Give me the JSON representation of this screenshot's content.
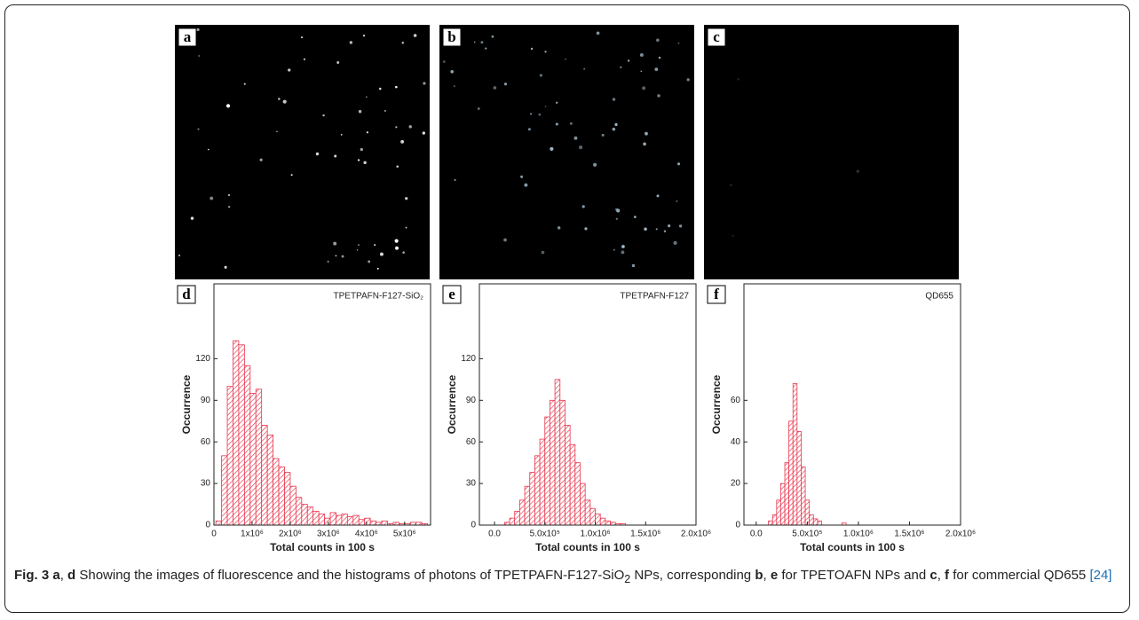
{
  "image_panels": [
    "a",
    "b",
    "c"
  ],
  "chart_data": [
    {
      "type": "histogram",
      "panel": "d",
      "annotation": "TPETPAFN-F127-SiO₂",
      "xlabel": "Total counts in 100 s",
      "ylabel": "Occurrence",
      "color": "#e8334a",
      "bins": [
        50000,
        200000,
        350000,
        500000,
        650000,
        800000,
        950000,
        1100000,
        1250000,
        1400000,
        1550000,
        1700000,
        1850000,
        2000000,
        2150000,
        2300000,
        2450000,
        2600000,
        2750000,
        2900000,
        3050000,
        3200000,
        3350000,
        3500000,
        3650000,
        3800000,
        3950000,
        4100000,
        4250000,
        4400000,
        4550000,
        4700000,
        4850000,
        5000000,
        5150000,
        5300000,
        5450000,
        5600000
      ],
      "values": [
        3,
        50,
        100,
        133,
        130,
        115,
        95,
        98,
        72,
        65,
        48,
        42,
        38,
        28,
        20,
        15,
        13,
        10,
        8,
        5,
        9,
        7,
        8,
        6,
        7,
        4,
        5,
        3,
        2,
        3,
        1,
        2,
        1,
        1,
        2,
        2,
        1
      ],
      "xlim": [
        0,
        5680000
      ],
      "ylim": [
        0,
        174
      ],
      "xticks": [
        0,
        {
          "value": 1000000,
          "label": "1x10⁶"
        },
        {
          "value": 2000000,
          "label": "2x10⁶"
        },
        {
          "value": 3000000,
          "label": "3x10⁶"
        },
        {
          "value": 4000000,
          "label": "4x10⁶"
        },
        {
          "value": 5000000,
          "label": "5x10⁶"
        }
      ],
      "yticks": [
        0,
        30,
        60,
        90,
        120
      ]
    },
    {
      "type": "histogram",
      "panel": "e",
      "annotation": "TPETPAFN-F127",
      "xlabel": "Total counts in 100 s",
      "ylabel": "Occurrence",
      "color": "#e8334a",
      "bins": [
        100000,
        150000,
        200000,
        250000,
        300000,
        350000,
        400000,
        450000,
        500000,
        550000,
        600000,
        650000,
        700000,
        750000,
        800000,
        850000,
        900000,
        950000,
        1000000,
        1050000,
        1100000,
        1150000,
        1200000,
        1250000,
        1300000
      ],
      "values": [
        2,
        5,
        10,
        18,
        28,
        38,
        50,
        62,
        78,
        90,
        105,
        90,
        72,
        58,
        45,
        30,
        18,
        12,
        8,
        5,
        3,
        2,
        1,
        1
      ],
      "xlim": [
        -150000,
        2000000
      ],
      "ylim": [
        0,
        174
      ],
      "xticks": [
        {
          "value": 0,
          "label": "0.0"
        },
        {
          "value": 500000,
          "label": "5.0x10⁵"
        },
        {
          "value": 1000000,
          "label": "1.0x10⁶"
        },
        {
          "value": 1500000,
          "label": "1.5x10⁶"
        },
        {
          "value": 2000000,
          "label": "2.0x10⁶"
        }
      ],
      "yticks": [
        0,
        30,
        60,
        90,
        120
      ]
    },
    {
      "type": "histogram",
      "panel": "f",
      "annotation": "QD655",
      "xlabel": "Total counts in 100 s",
      "ylabel": "Occurrence",
      "color": "#e8334a",
      "bins": [
        120000,
        160000,
        200000,
        240000,
        280000,
        320000,
        360000,
        400000,
        440000,
        480000,
        520000,
        560000,
        600000,
        640000,
        680000,
        720000,
        760000,
        800000,
        840000,
        880000
      ],
      "values": [
        2,
        5,
        12,
        20,
        30,
        50,
        68,
        45,
        28,
        12,
        5,
        3,
        2,
        0,
        0,
        0,
        0,
        0,
        1
      ],
      "xlim": [
        -120000,
        2000000
      ],
      "ylim": [
        0,
        116
      ],
      "xticks": [
        {
          "value": 0,
          "label": "0.0"
        },
        {
          "value": 500000,
          "label": "5.0x10⁵"
        },
        {
          "value": 1000000,
          "label": "1.0x10⁶"
        },
        {
          "value": 1500000,
          "label": "1.5x10⁶"
        },
        {
          "value": 2000000,
          "label": "2.0x10⁶"
        }
      ],
      "yticks": [
        0,
        20,
        40,
        60
      ]
    }
  ],
  "caption": [
    {
      "text": "Fig. 3 a",
      "bold": true
    },
    {
      "text": ", "
    },
    {
      "text": "d",
      "bold": true
    },
    {
      "text": " Showing the images of fluorescence and the histograms of photons of TPETPAFN-F127-SiO"
    },
    {
      "text": "2",
      "sub": true
    },
    {
      "text": " NPs, corresponding "
    },
    {
      "text": "b",
      "bold": true
    },
    {
      "text": ", "
    },
    {
      "text": "e",
      "bold": true
    },
    {
      "text": " for TPETOAFN NPs and "
    },
    {
      "text": "c",
      "bold": true
    },
    {
      "text": ", "
    },
    {
      "text": "f",
      "bold": true
    },
    {
      "text": " for commercial QD655 "
    },
    {
      "text": "[24]",
      "link": true
    }
  ]
}
